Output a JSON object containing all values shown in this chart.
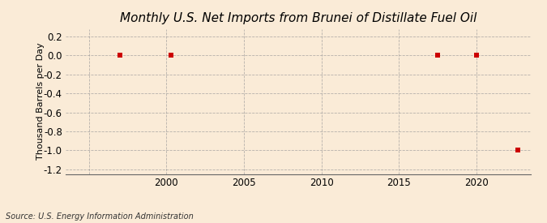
{
  "title": "Monthly U.S. Net Imports from Brunei of Distillate Fuel Oil",
  "ylabel": "Thousand Barrels per Day",
  "source": "Source: U.S. Energy Information Administration",
  "background_color": "#faebd7",
  "plot_bg_color": "#faebd7",
  "xlim": [
    1993.5,
    2023.5
  ],
  "ylim": [
    -1.25,
    0.28
  ],
  "yticks": [
    0.2,
    0.0,
    -0.2,
    -0.4,
    -0.6,
    -0.8,
    -1.0,
    -1.2
  ],
  "xticks": [
    1995,
    2000,
    2005,
    2010,
    2015,
    2020
  ],
  "xtick_labels": [
    "",
    "2000",
    "2005",
    "2010",
    "2015",
    "2020"
  ],
  "data_x": [
    1997.0,
    2000.3,
    2017.5,
    2020.0,
    2022.7
  ],
  "data_y": [
    0.0,
    0.0,
    0.0,
    0.0,
    -1.0
  ],
  "marker_color": "#cc0000",
  "marker_size": 4,
  "grid_color": "#999999",
  "title_fontsize": 11,
  "axis_fontsize": 8,
  "tick_fontsize": 8.5,
  "source_fontsize": 7
}
